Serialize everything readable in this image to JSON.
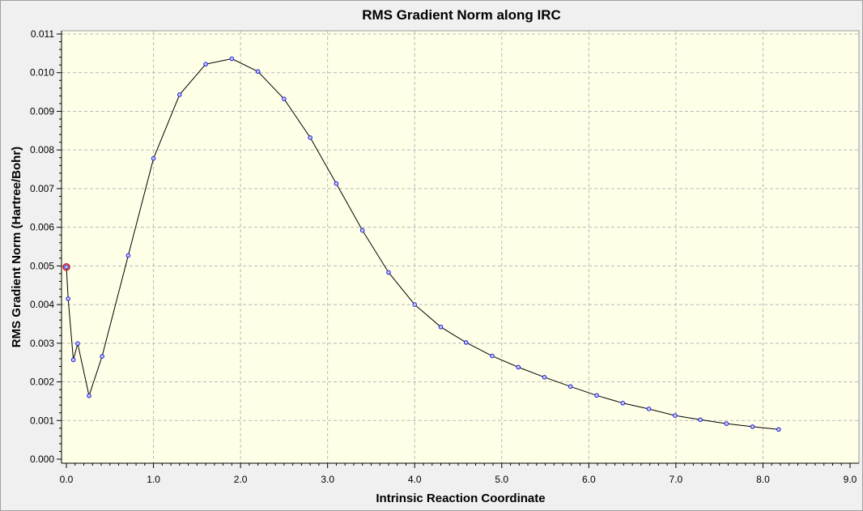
{
  "chart_data": {
    "type": "line",
    "title": "RMS Gradient Norm along IRC",
    "xlabel": "Intrinsic Reaction Coordinate",
    "ylabel": "RMS Gradient Norm (Hartree/Bohr)",
    "xlim": [
      0.0,
      9.0
    ],
    "ylim": [
      0.0,
      0.011
    ],
    "x_ticks": [
      "0.0",
      "1.0",
      "2.0",
      "3.0",
      "4.0",
      "5.0",
      "6.0",
      "7.0",
      "8.0",
      "9.0"
    ],
    "y_ticks": [
      "0.000",
      "0.001",
      "0.002",
      "0.003",
      "0.004",
      "0.005",
      "0.006",
      "0.007",
      "0.008",
      "0.009",
      "0.010",
      "0.011"
    ],
    "grid": true,
    "highlighted_point_index": 0,
    "series": [
      {
        "x": [
          0.0,
          0.02,
          0.08,
          0.13,
          0.26,
          0.41,
          0.71,
          1.0,
          1.3,
          1.6,
          1.9,
          2.2,
          2.5,
          2.8,
          3.1,
          3.4,
          3.7,
          4.0,
          4.3,
          4.59,
          4.89,
          5.19,
          5.49,
          5.79,
          6.09,
          6.39,
          6.69,
          6.99,
          7.28,
          7.58,
          7.88,
          8.18
        ],
        "y": [
          0.00497,
          0.00415,
          0.00257,
          0.00299,
          0.00164,
          0.00266,
          0.00527,
          0.00778,
          0.00943,
          0.01022,
          0.01036,
          0.01003,
          0.00932,
          0.00832,
          0.00713,
          0.00592,
          0.00483,
          0.004,
          0.00342,
          0.00302,
          0.00267,
          0.00238,
          0.00212,
          0.00188,
          0.00165,
          0.00145,
          0.0013,
          0.00113,
          0.00102,
          0.00092,
          0.00084,
          0.00077
        ]
      }
    ]
  }
}
